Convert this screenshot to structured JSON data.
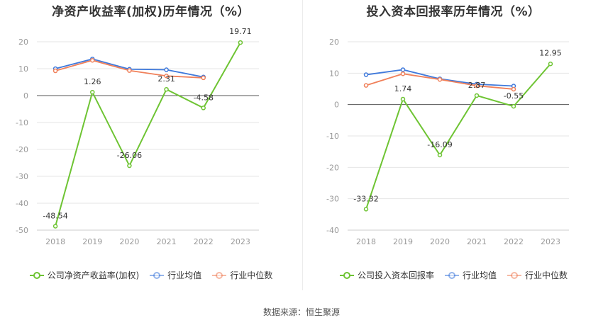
{
  "footer": {
    "source": "数据来源：恒生聚源"
  },
  "colors": {
    "company": "#6ec433",
    "industry_avg": "#3f79db",
    "industry_median": "#f0805a"
  },
  "chart_data": [
    {
      "type": "line",
      "title": "净资产收益率(加权)历年情况（%）",
      "categories": [
        "2018",
        "2019",
        "2020",
        "2021",
        "2022",
        "2023"
      ],
      "ylim": [
        -50,
        20
      ],
      "yticks": [
        20,
        10,
        0,
        -10,
        -20,
        -30,
        -40,
        -50
      ],
      "grid": true,
      "legend_position": "bottom",
      "series": [
        {
          "name": "公司净资产收益率(加权)",
          "key": "company",
          "values": [
            -48.54,
            1.26,
            -26.06,
            2.31,
            -4.58,
            19.71
          ],
          "labels": [
            "-48.54",
            "1.26",
            "-26.06",
            "2.31",
            "-4.58",
            "19.71"
          ]
        },
        {
          "name": "行业均值",
          "key": "industry_avg",
          "values": [
            10.0,
            13.6,
            9.8,
            9.6,
            6.9,
            null
          ]
        },
        {
          "name": "行业中位数",
          "key": "industry_median",
          "values": [
            9.2,
            13.1,
            9.3,
            7.3,
            6.6,
            null
          ]
        }
      ]
    },
    {
      "type": "line",
      "title": "投入资本回报率历年情况（%）",
      "categories": [
        "2018",
        "2019",
        "2020",
        "2021",
        "2022",
        "2023"
      ],
      "ylim": [
        -40,
        20
      ],
      "yticks": [
        20,
        10,
        0,
        -10,
        -20,
        -30,
        -40
      ],
      "grid": true,
      "legend_position": "bottom",
      "series": [
        {
          "name": "公司投入资本回报率",
          "key": "company",
          "values": [
            -33.32,
            1.74,
            -16.09,
            2.87,
            -0.55,
            12.95
          ],
          "labels": [
            "-33.32",
            "1.74",
            "-16.09",
            "2.87",
            "-0.55",
            "12.95"
          ]
        },
        {
          "name": "行业均值",
          "key": "industry_avg",
          "values": [
            9.5,
            11.1,
            8.2,
            6.5,
            5.9,
            null
          ]
        },
        {
          "name": "行业中位数",
          "key": "industry_median",
          "values": [
            6.1,
            9.8,
            8.0,
            6.0,
            4.9,
            null
          ]
        }
      ]
    }
  ]
}
